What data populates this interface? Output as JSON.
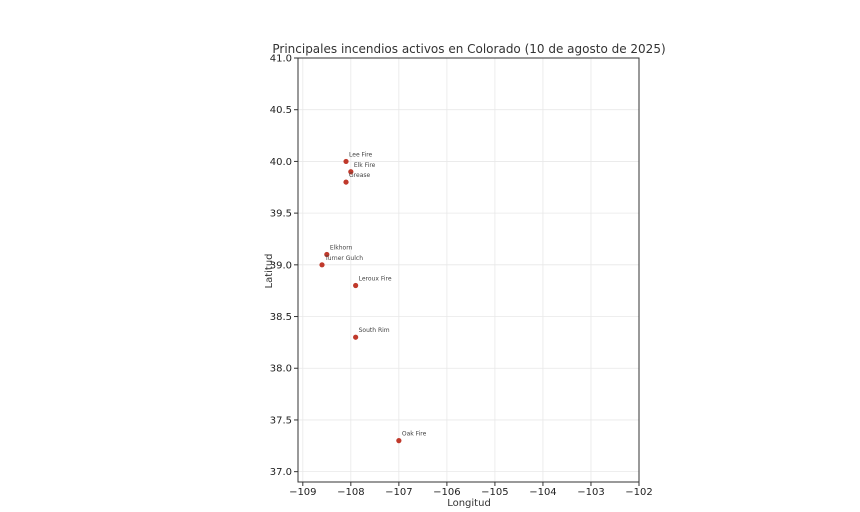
{
  "chart_data": {
    "type": "scatter",
    "title": "Principales incendios activos en Colorado (10 de agosto de 2025)",
    "xlabel": "Longitud",
    "ylabel": "Latitud",
    "xlim": [
      -109.1,
      -102
    ],
    "ylim": [
      36.9,
      41
    ],
    "xticks": [
      -109,
      -108,
      -107,
      -106,
      -105,
      -104,
      -103,
      -102
    ],
    "xtick_labels": [
      "−109",
      "−108",
      "−107",
      "−106",
      "−105",
      "−104",
      "−103",
      "−102"
    ],
    "yticks": [
      37.0,
      37.5,
      38.0,
      38.5,
      39.0,
      39.5,
      40.0,
      40.5,
      41.0
    ],
    "ytick_labels": [
      "37.0",
      "37.5",
      "38.0",
      "38.5",
      "39.0",
      "39.5",
      "40.0",
      "40.5",
      "41.0"
    ],
    "grid": true,
    "marker_color": "#c0392b",
    "points": [
      {
        "label": "Lee Fire",
        "x": -108.1,
        "y": 40.0
      },
      {
        "label": "Elk Fire",
        "x": -108.0,
        "y": 39.9
      },
      {
        "label": "Grease",
        "x": -108.1,
        "y": 39.8
      },
      {
        "label": "Elkhorn",
        "x": -108.5,
        "y": 39.1
      },
      {
        "label": "Turner Gulch",
        "x": -108.6,
        "y": 39.0
      },
      {
        "label": "Leroux Fire",
        "x": -107.9,
        "y": 38.8
      },
      {
        "label": "South Rim",
        "x": -107.9,
        "y": 38.3
      },
      {
        "label": "Oak Fire",
        "x": -107.0,
        "y": 37.3
      }
    ]
  }
}
